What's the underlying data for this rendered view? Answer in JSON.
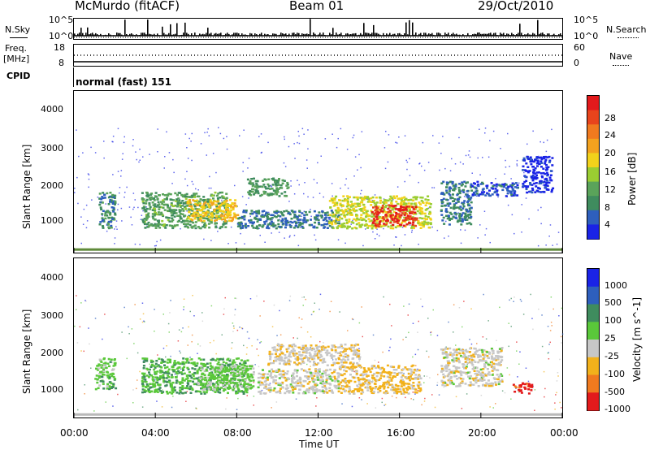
{
  "header": {
    "station": "McMurdo (fitACF)",
    "beam": "Beam 01",
    "date": "29/Oct/2010"
  },
  "top_panels": {
    "nsky_label": "N.Sky",
    "nsky_ticks": [
      "10^5",
      "10^0"
    ],
    "nsearch_label": "N.Search",
    "nsearch_ticks": [
      "10^5",
      "10^0"
    ],
    "freq_label": "Freq.",
    "freq_unit": "[MHz]",
    "freq_ticks": [
      "18",
      "8"
    ],
    "nave_label": "Nave",
    "nave_ticks": [
      "60",
      "0"
    ],
    "cpid_label": "CPID",
    "cpid_value": "normal (fast) 151"
  },
  "power_panel": {
    "ylabel": "Slant Range [km]",
    "yticks": [
      "4000",
      "3000",
      "2000",
      "1000"
    ],
    "colorbar_label": "Power [dB]",
    "colorbar_ticks": [
      "28",
      "24",
      "20",
      "16",
      "12",
      "8",
      "4"
    ],
    "colors": [
      "#1a23e6",
      "#2e5fbd",
      "#3f8c5e",
      "#5aa35a",
      "#9acd32",
      "#f2d21b",
      "#f3a21f",
      "#f07a1f",
      "#e8441c",
      "#e31a1c"
    ]
  },
  "velocity_panel": {
    "ylabel": "Slant Range [km]",
    "yticks": [
      "4000",
      "3000",
      "2000",
      "1000"
    ],
    "colorbar_label": "Velocity [m s^-1]",
    "colorbar_ticks": [
      "1000",
      "500",
      "100",
      "25",
      "-25",
      "-100",
      "-500",
      "-1000"
    ],
    "colors": [
      "#1a23e6",
      "#2e5fbd",
      "#3f8c5e",
      "#5ac83a",
      "#c7c7c7",
      "#f2b11b",
      "#f07a1f",
      "#e31a1c"
    ]
  },
  "xaxis": {
    "ticks": [
      "00:00",
      "04:00",
      "08:00",
      "12:00",
      "16:00",
      "20:00",
      "00:00"
    ],
    "label": "Time UT"
  },
  "chart_data": {
    "type": "heatmap",
    "title": "McMurdo (fitACF) Beam 01 29/Oct/2010",
    "xlabel": "Time UT",
    "ylabel": "Slant Range [km]",
    "xlim_hours": [
      0,
      24
    ],
    "ylim_km": [
      0,
      4500
    ],
    "series": [
      {
        "name": "Power [dB]",
        "scale": [
          4,
          28
        ],
        "patches": [
          {
            "t0": 1.2,
            "t1": 2.0,
            "r0": 700,
            "r1": 1700,
            "value": 10
          },
          {
            "t0": 3.3,
            "t1": 7.5,
            "r0": 700,
            "r1": 1700,
            "value": 12
          },
          {
            "t0": 5.5,
            "t1": 8.0,
            "r0": 900,
            "r1": 1500,
            "value": 18
          },
          {
            "t0": 8.5,
            "t1": 10.5,
            "r0": 1600,
            "r1": 2100,
            "value": 11
          },
          {
            "t0": 8.0,
            "t1": 13.0,
            "r0": 700,
            "r1": 1200,
            "value": 9
          },
          {
            "t0": 12.5,
            "t1": 17.5,
            "r0": 700,
            "r1": 1600,
            "value": 16
          },
          {
            "t0": 14.6,
            "t1": 16.8,
            "r0": 750,
            "r1": 1350,
            "value": 26
          },
          {
            "t0": 18.0,
            "t1": 19.5,
            "r0": 800,
            "r1": 2000,
            "value": 9
          },
          {
            "t0": 19.5,
            "t1": 21.8,
            "r0": 1600,
            "r1": 2000,
            "value": 7
          },
          {
            "t0": 22.0,
            "t1": 23.5,
            "r0": 1700,
            "r1": 2700,
            "value": 5
          }
        ]
      },
      {
        "name": "Velocity [m s^-1]",
        "scale": [
          -1000,
          1000
        ],
        "patches": [
          {
            "t0": 1.0,
            "t1": 2.0,
            "r0": 800,
            "r1": 1700,
            "value": 150
          },
          {
            "t0": 3.3,
            "t1": 8.5,
            "r0": 700,
            "r1": 1700,
            "value": 200
          },
          {
            "t0": 6.0,
            "t1": 8.8,
            "r0": 800,
            "r1": 1500,
            "value": 60
          },
          {
            "t0": 9.0,
            "t1": 13.0,
            "r0": 700,
            "r1": 1400,
            "value": -120
          },
          {
            "t0": 9.5,
            "t1": 14.0,
            "r0": 1500,
            "r1": 2100,
            "value": -200
          },
          {
            "t0": 13.0,
            "t1": 17.0,
            "r0": 700,
            "r1": 1500,
            "value": -300
          },
          {
            "t0": 18.0,
            "t1": 21.0,
            "r0": 900,
            "r1": 2000,
            "value": -150
          },
          {
            "t0": 21.5,
            "t1": 22.5,
            "r0": 700,
            "r1": 1000,
            "value": -800
          }
        ]
      }
    ]
  }
}
